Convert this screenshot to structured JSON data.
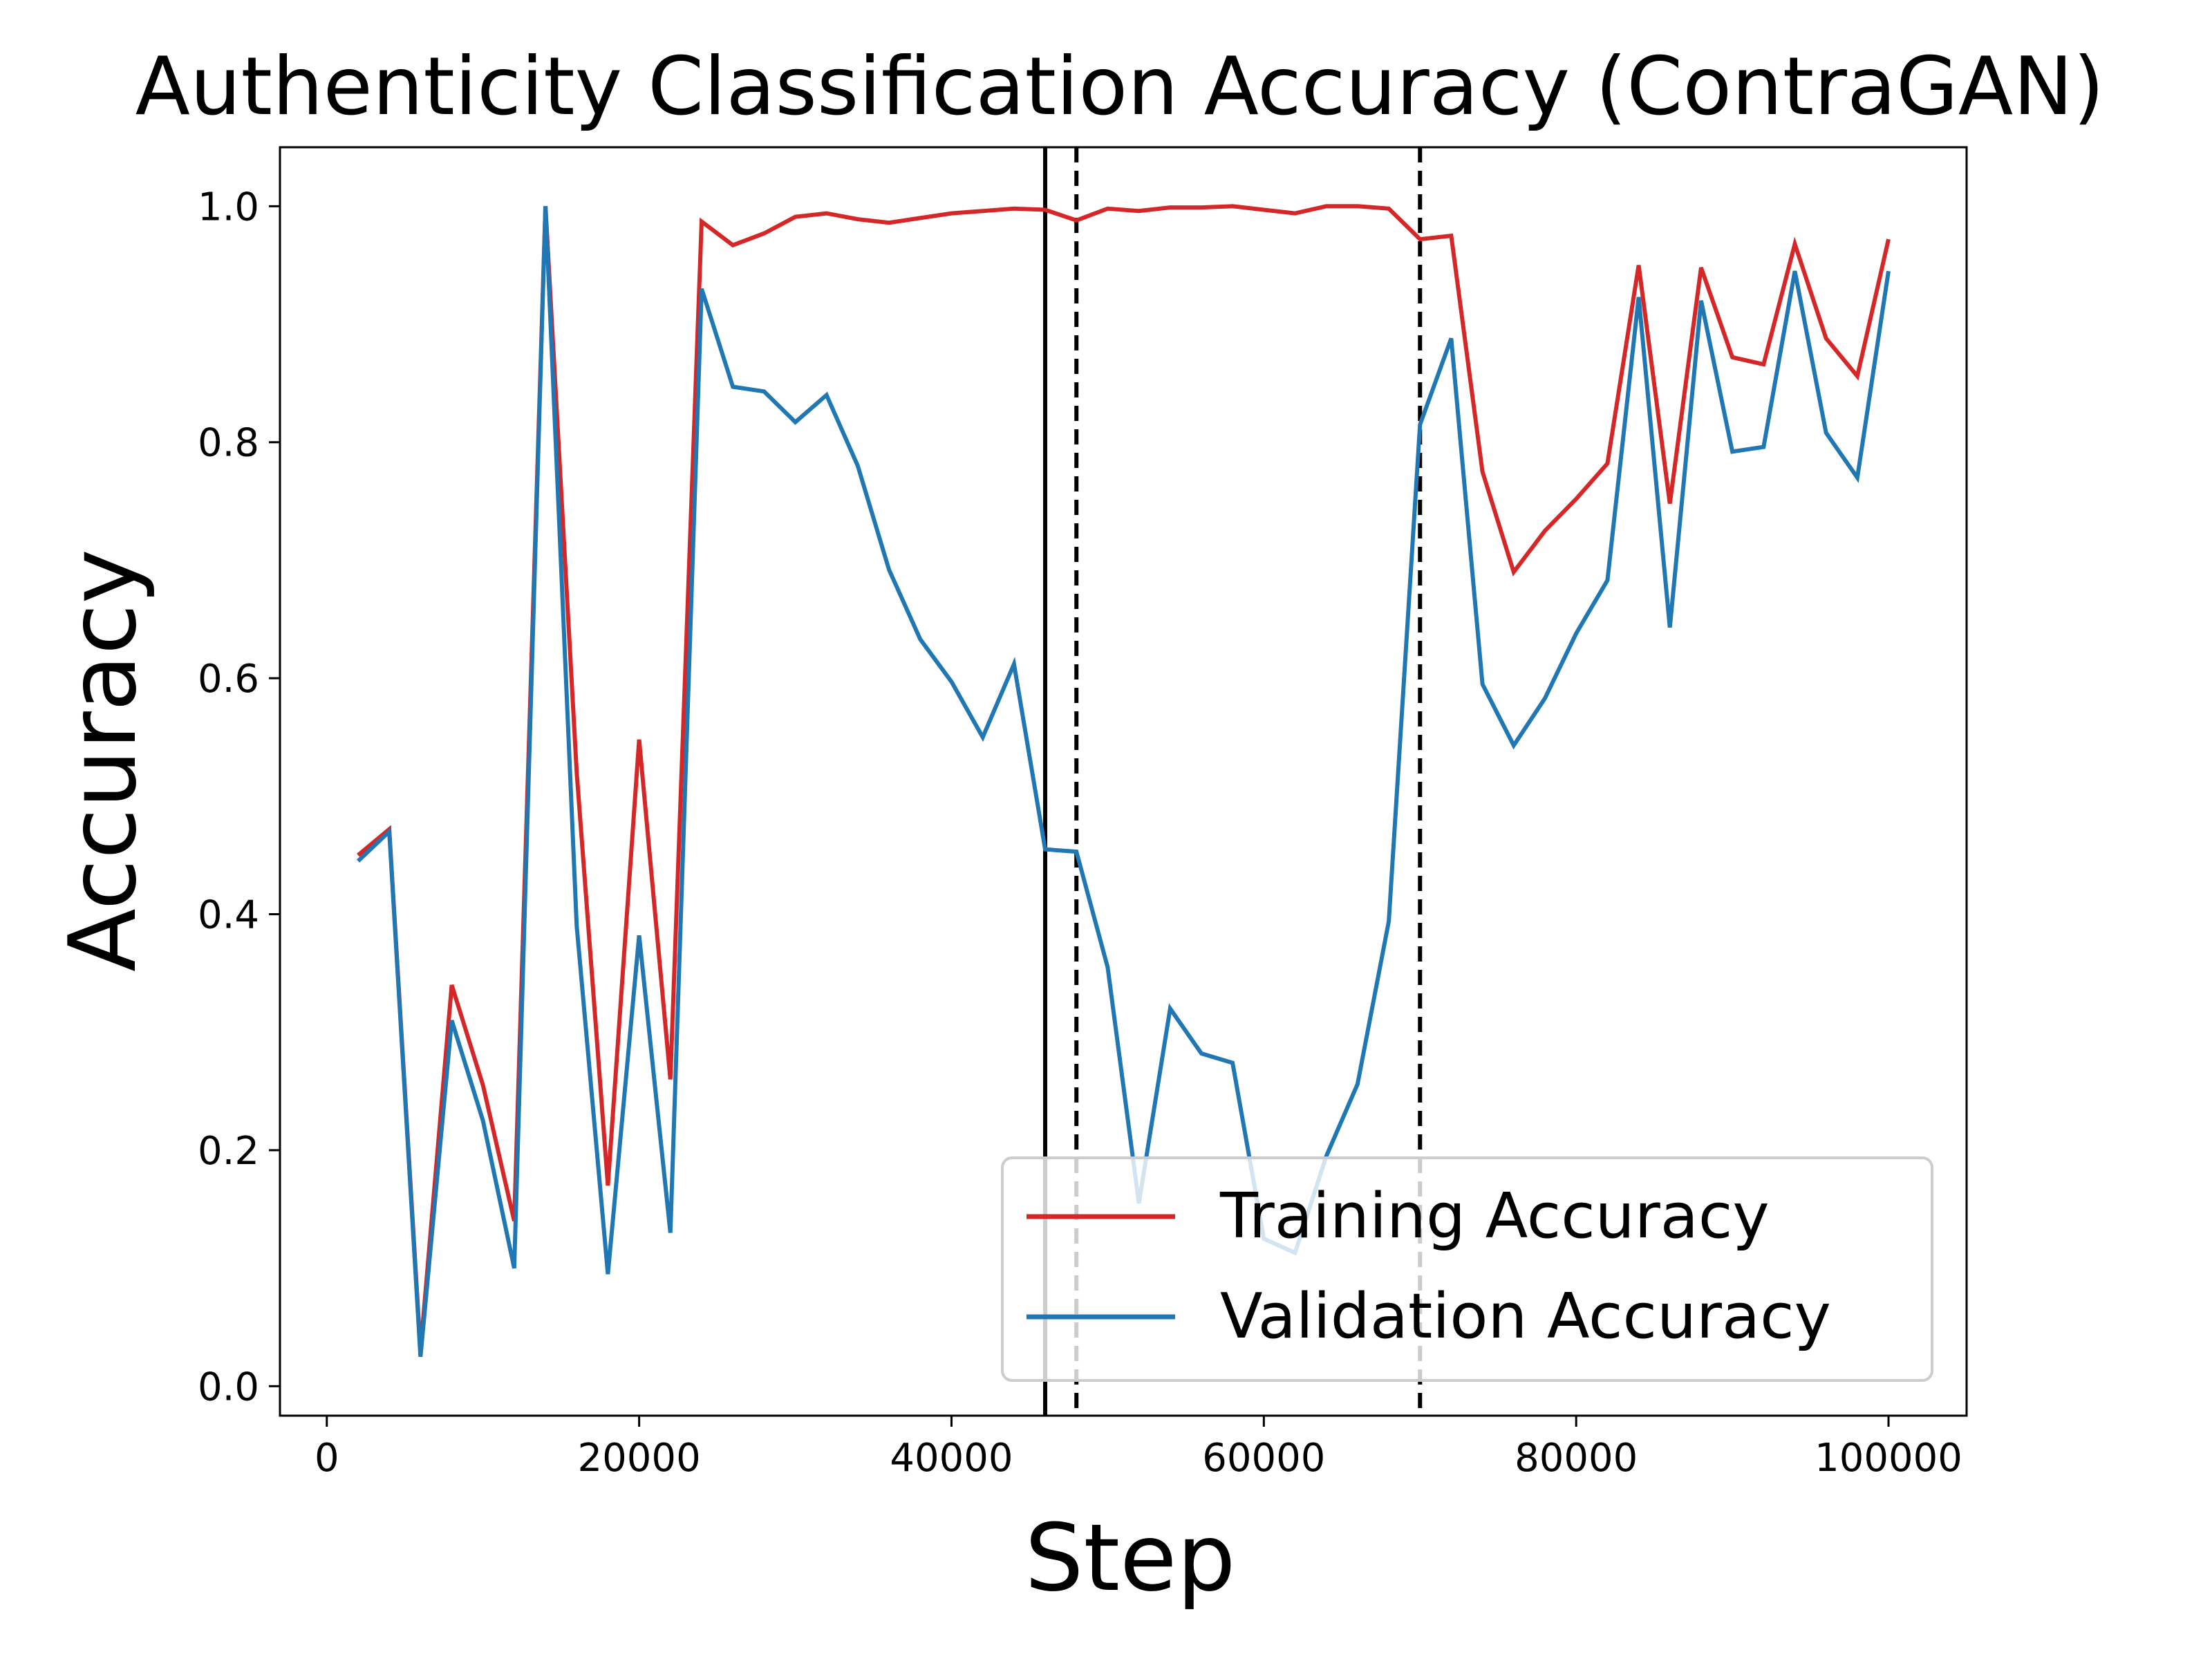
{
  "chart_data": {
    "type": "line",
    "title": "Authenticity Classification Accuracy (ContraGAN)",
    "xlabel": "Step",
    "ylabel": "Accuracy",
    "xlim": [
      -3000,
      105000
    ],
    "ylim": [
      -0.025,
      1.05
    ],
    "xticks": [
      0,
      20000,
      40000,
      60000,
      80000,
      100000
    ],
    "xtick_labels": [
      "0",
      "20000",
      "40000",
      "60000",
      "80000",
      "100000"
    ],
    "yticks": [
      0.0,
      0.2,
      0.4,
      0.6,
      0.8,
      1.0
    ],
    "ytick_labels": [
      "0.0",
      "0.2",
      "0.4",
      "0.6",
      "0.8",
      "1.0"
    ],
    "grid": false,
    "legend_position": "lower right",
    "vlines": [
      {
        "x": 46000,
        "style": "solid",
        "color": "#000000"
      },
      {
        "x": 48000,
        "style": "dashed",
        "color": "#000000"
      },
      {
        "x": 70000,
        "style": "dashed",
        "color": "#000000"
      }
    ],
    "x": [
      2000,
      4000,
      6000,
      8000,
      10000,
      12000,
      14000,
      16000,
      18000,
      20000,
      22000,
      24000,
      26000,
      28000,
      30000,
      32000,
      34000,
      36000,
      38000,
      40000,
      42000,
      44000,
      46000,
      48000,
      50000,
      52000,
      54000,
      56000,
      58000,
      60000,
      62000,
      64000,
      66000,
      68000,
      70000,
      72000,
      74000,
      76000,
      78000,
      80000,
      82000,
      84000,
      86000,
      88000,
      90000,
      92000,
      94000,
      96000,
      98000,
      100000
    ],
    "series": [
      {
        "name": "Training Accuracy",
        "color": "#d62728",
        "values": [
          0.45,
          0.472,
          0.03,
          0.34,
          0.255,
          0.14,
          1.0,
          0.52,
          0.17,
          0.548,
          0.26,
          0.987,
          0.967,
          0.977,
          0.991,
          0.994,
          0.989,
          0.986,
          0.99,
          0.994,
          0.996,
          0.998,
          0.997,
          0.988,
          0.998,
          0.996,
          0.999,
          0.999,
          1.0,
          0.997,
          0.994,
          1.0,
          1.0,
          0.998,
          0.972,
          0.975,
          0.775,
          0.69,
          0.725,
          0.752,
          0.782,
          0.95,
          0.748,
          0.948,
          0.872,
          0.866,
          0.968,
          0.888,
          0.856,
          0.972
        ]
      },
      {
        "name": "Validation Accuracy",
        "color": "#1f77b4",
        "values": [
          0.445,
          0.47,
          0.025,
          0.31,
          0.225,
          0.1,
          1.0,
          0.39,
          0.095,
          0.382,
          0.13,
          0.93,
          0.847,
          0.843,
          0.817,
          0.84,
          0.78,
          0.692,
          0.633,
          0.597,
          0.55,
          0.612,
          0.455,
          0.453,
          0.355,
          0.155,
          0.32,
          0.282,
          0.274,
          0.125,
          0.113,
          0.195,
          0.256,
          0.394,
          0.815,
          0.888,
          0.595,
          0.543,
          0.583,
          0.638,
          0.683,
          0.923,
          0.643,
          0.92,
          0.792,
          0.796,
          0.945,
          0.808,
          0.77,
          0.945
        ]
      }
    ]
  }
}
